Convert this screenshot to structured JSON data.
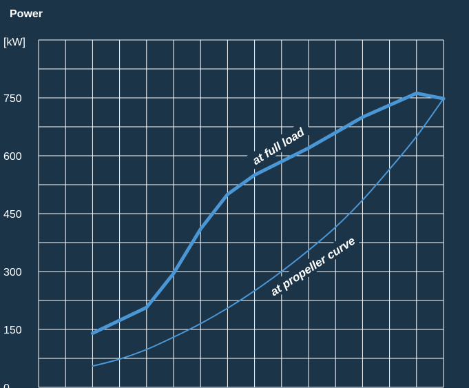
{
  "chart_data": {
    "type": "line",
    "title": "Power",
    "ylabel": "[kW]",
    "ylim": [
      0,
      900
    ],
    "yticks": [
      0,
      150,
      300,
      450,
      600,
      750
    ],
    "xlim": [
      0,
      15
    ],
    "xticks_labeled": false,
    "grid": true,
    "legend": "none",
    "colors": {
      "background": "#1c3448",
      "grid": "#ffffff",
      "line": "#4b97d6",
      "text": "#ffffff"
    },
    "series": [
      {
        "label": "at full load",
        "x": [
          2,
          4,
          5,
          6,
          7,
          8,
          10,
          12,
          14,
          15
        ],
        "y": [
          140,
          207,
          295,
          410,
          500,
          550,
          620,
          700,
          762,
          748
        ]
      },
      {
        "label": "at propeller curve",
        "x": [
          2,
          3,
          4,
          5,
          6,
          7,
          8,
          9,
          10,
          11,
          12,
          13,
          14,
          15
        ],
        "y": [
          55,
          73,
          98,
          130,
          165,
          205,
          250,
          300,
          355,
          415,
          485,
          565,
          650,
          748
        ]
      }
    ]
  }
}
